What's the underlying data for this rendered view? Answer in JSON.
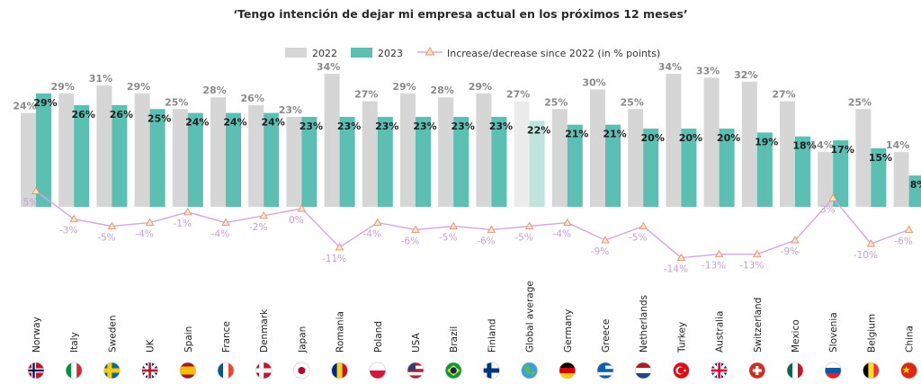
{
  "chart_data": {
    "type": "bar",
    "title": "‘Tengo intención de dejar mi empresa actual en los próximos 12 meses’",
    "legend": {
      "position": "top-center",
      "items": [
        {
          "name": "2022",
          "color": "#d6d6d6"
        },
        {
          "name": "2023",
          "color": "#5bbfb3"
        },
        {
          "name": "Increase/decrease since 2022 (in % points)",
          "color": "#d4a7e3"
        }
      ]
    },
    "categories": [
      "Norway",
      "Italy",
      "Sweden",
      "UK",
      "Spain",
      "France",
      "Denmark",
      "Japan",
      "Romania",
      "Poland",
      "USA",
      "Brazil",
      "Finland",
      "Global average",
      "Germany",
      "Greece",
      "Netherlands",
      "Turkey",
      "Australia",
      "Switzerland",
      "Mexico",
      "Slovenia",
      "Belgium",
      "China"
    ],
    "highlight_category": "Global average",
    "series": [
      {
        "name": "2022",
        "color": "#d6d6d6",
        "labels": [
          "24%",
          "29%",
          "31%",
          "29%",
          "25%",
          "28%",
          "26%",
          "23%",
          "34%",
          "27%",
          "29%",
          "28%",
          "29%",
          "27%",
          "25%",
          "30%",
          "25%",
          "34%",
          "33%",
          "32%",
          "27%",
          "14%",
          "25%",
          "14%"
        ],
        "values": [
          24,
          29,
          31,
          29,
          25,
          28,
          26,
          23,
          34,
          27,
          29,
          28,
          29,
          27,
          25,
          30,
          25,
          34,
          33,
          32,
          27,
          14,
          25,
          14
        ]
      },
      {
        "name": "2023",
        "color": "#5bbfb3",
        "labels": [
          "29%",
          "26%",
          "26%",
          "25%",
          "24%",
          "24%",
          "24%",
          "23%",
          "23%",
          "23%",
          "23%",
          "23%",
          "23%",
          "22%",
          "21%",
          "21%",
          "20%",
          "20%",
          "20%",
          "19%",
          "18%",
          "17%",
          "15%",
          "8%"
        ],
        "values": [
          29,
          26,
          26,
          25,
          24,
          24,
          24,
          23,
          23,
          23,
          23,
          23,
          23,
          22,
          21,
          21,
          20,
          20,
          20,
          19,
          18,
          17,
          15,
          8
        ]
      },
      {
        "name": "Increase/decrease since 2022 (in % points)",
        "color": "#d4a7e3",
        "labels": [
          "5%",
          "-3%",
          "-5%",
          "-4%",
          "-1%",
          "-4%",
          "-2%",
          "0%",
          "-11%",
          "-4%",
          "-6%",
          "-5%",
          "-6%",
          "-5%",
          "-4%",
          "-9%",
          "-5%",
          "-14%",
          "-13%",
          "-13%",
          "-9%",
          "3%",
          "-10%",
          "-6%"
        ],
        "values": [
          5,
          -3,
          -5,
          -4,
          -1,
          -4,
          -2,
          0,
          -11,
          -4,
          -6,
          -5,
          -6,
          -5,
          -4,
          -9,
          -5,
          -14,
          -13,
          -13,
          -9,
          3,
          -10,
          -6
        ]
      }
    ],
    "flags": [
      {
        "country": "Norway",
        "icon": "norway-flag-icon",
        "bg": "#c8102e",
        "a": "#ffffff",
        "b": "#00205b",
        "style": "nordic"
      },
      {
        "country": "Italy",
        "icon": "italy-flag-icon",
        "bg": "#ffffff",
        "a": "#009246",
        "b": "#ce2b37",
        "style": "vtri"
      },
      {
        "country": "Sweden",
        "icon": "sweden-flag-icon",
        "bg": "#006aa7",
        "a": "#fecc00",
        "b": "#fecc00",
        "style": "nordic"
      },
      {
        "country": "UK",
        "icon": "uk-flag-icon",
        "bg": "#012169",
        "a": "#ffffff",
        "b": "#c8102e",
        "style": "cross"
      },
      {
        "country": "Spain",
        "icon": "spain-flag-icon",
        "bg": "#f1bf00",
        "a": "#aa151b",
        "b": "#aa151b",
        "style": "hband"
      },
      {
        "country": "France",
        "icon": "france-flag-icon",
        "bg": "#ffffff",
        "a": "#0055a4",
        "b": "#ef4135",
        "style": "vtri"
      },
      {
        "country": "Denmark",
        "icon": "denmark-flag-icon",
        "bg": "#c8102e",
        "a": "#ffffff",
        "b": "#ffffff",
        "style": "nordic"
      },
      {
        "country": "Japan",
        "icon": "japan-flag-icon",
        "bg": "#ffffff",
        "a": "#bc002d",
        "b": "#bc002d",
        "style": "dot"
      },
      {
        "country": "Romania",
        "icon": "romania-flag-icon",
        "bg": "#fcd116",
        "a": "#002b7f",
        "b": "#ce1126",
        "style": "vtri"
      },
      {
        "country": "Poland",
        "icon": "poland-flag-icon",
        "bg": "#ffffff",
        "a": "#ffffff",
        "b": "#dc143c",
        "style": "hbi"
      },
      {
        "country": "USA",
        "icon": "usa-flag-icon",
        "bg": "#ffffff",
        "a": "#b22234",
        "b": "#3c3b6e",
        "style": "stripes"
      },
      {
        "country": "Brazil",
        "icon": "brazil-flag-icon",
        "bg": "#009c3b",
        "a": "#ffdf00",
        "b": "#002776",
        "style": "diamond"
      },
      {
        "country": "Finland",
        "icon": "finland-flag-icon",
        "bg": "#ffffff",
        "a": "#003580",
        "b": "#003580",
        "style": "nordic"
      },
      {
        "country": "Global average",
        "icon": "globe-icon",
        "bg": "#3aa0d8",
        "a": "#5cb85c",
        "b": "#5cb85c",
        "style": "globe"
      },
      {
        "country": "Germany",
        "icon": "germany-flag-icon",
        "bg": "#dd0000",
        "a": "#000000",
        "b": "#ffce00",
        "style": "htri"
      },
      {
        "country": "Greece",
        "icon": "greece-flag-icon",
        "bg": "#ffffff",
        "a": "#0d5eaf",
        "b": "#0d5eaf",
        "style": "stripes"
      },
      {
        "country": "Netherlands",
        "icon": "netherlands-flag-icon",
        "bg": "#ffffff",
        "a": "#ae1c28",
        "b": "#21468b",
        "style": "htri"
      },
      {
        "country": "Turkey",
        "icon": "turkey-flag-icon",
        "bg": "#e30a17",
        "a": "#ffffff",
        "b": "#ffffff",
        "style": "crescent"
      },
      {
        "country": "Australia",
        "icon": "australia-flag-icon",
        "bg": "#012169",
        "a": "#ffffff",
        "b": "#e4002b",
        "style": "cross"
      },
      {
        "country": "Switzerland",
        "icon": "switzerland-flag-icon",
        "bg": "#d52b1e",
        "a": "#ffffff",
        "b": "#ffffff",
        "style": "plus"
      },
      {
        "country": "Mexico",
        "icon": "mexico-flag-icon",
        "bg": "#ffffff",
        "a": "#006847",
        "b": "#ce1126",
        "style": "vtri"
      },
      {
        "country": "Slovenia",
        "icon": "slovenia-flag-icon",
        "bg": "#005da4",
        "a": "#ffffff",
        "b": "#ed1c24",
        "style": "htri"
      },
      {
        "country": "Belgium",
        "icon": "belgium-flag-icon",
        "bg": "#fdda24",
        "a": "#000000",
        "b": "#ef3340",
        "style": "vtri"
      },
      {
        "country": "China",
        "icon": "china-flag-icon",
        "bg": "#de2910",
        "a": "#ffde00",
        "b": "#ffde00",
        "style": "star"
      }
    ]
  }
}
